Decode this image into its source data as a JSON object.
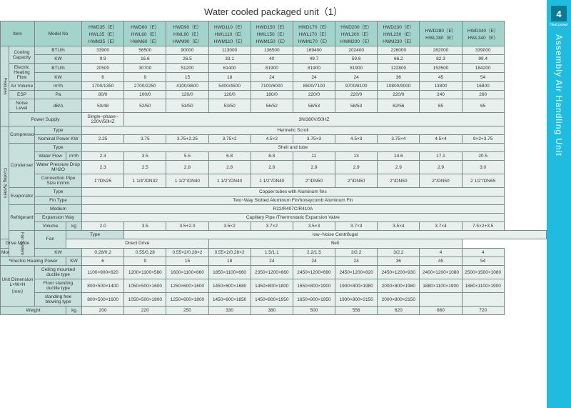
{
  "title": "Water cooled packaged unit（1）",
  "sidebar": {
    "num": "4",
    "small": "Heat power",
    "label": "Assembly Air Handling Unit"
  },
  "header": {
    "item": "Item",
    "model": "Model No",
    "models": [
      "HWD35（E）\nHWL35（E）\nHWM35（E）",
      "HWD60（E）\nHWL60（E）\nHWM60（E）",
      "HWD90（E）\nHWL90（E）\nHWM90（E）",
      "HWD110（E）\nHWL110（E）\nHWM110（E）",
      "HWD150（E）\nHWL150（E）\nHWM150（E）",
      "HWD170（E）\nHWL170（E）\nHWM170（E）",
      "HWD200（E）\nHWL200（E）\nHWM200（E）",
      "HWD230（E）\nHWL230（E）\nHWM230（E）",
      "HWD280（E）\nHWL280（E）",
      "HWD340（E）\nHWL340（E）"
    ]
  },
  "groups": {
    "features": "Features",
    "cooling": "Cooling System",
    "fan": "Fan System"
  },
  "rows": {
    "coolCap": "Cooling\nCapacity",
    "btu": "BTU/h",
    "kw": "KW",
    "coolBtu": [
      "33900",
      "56500",
      "90000",
      "113000",
      "136500",
      "169400",
      "202400",
      "226000",
      "282000",
      "339000"
    ],
    "coolKw": [
      "9.9",
      "16.6",
      "26.5",
      "33.1",
      "40",
      "49.7",
      "59.6",
      "66.2",
      "82.3",
      "99.4"
    ],
    "ehf": "Electric\nHeating\nFlow",
    "ehfBtu": [
      "20500",
      "30700",
      "51200",
      "61400",
      "81900",
      "81900",
      "81900",
      "122800",
      "153500",
      "184200"
    ],
    "ehfKw": [
      "6",
      "9",
      "15",
      "18",
      "24",
      "24",
      "24",
      "36",
      "45",
      "54"
    ],
    "airVol": "Air Volume",
    "m3h": "m³/h",
    "airVolV": [
      "1700/1350",
      "2700/2250",
      "4100/3600",
      "5400/4500",
      "7100/6000",
      "8500/7100",
      "9700/8100",
      "10800/9000",
      "13800",
      "16800"
    ],
    "esp": "ESP",
    "pa": "Pa",
    "espV": [
      "80/0",
      "100/0",
      "120/0",
      "120/0",
      "180/0",
      "220/0",
      "220/0",
      "220/0",
      "240",
      "260"
    ],
    "noise": "Noise Level",
    "dba": "dB/A",
    "noiseV": [
      "50/48",
      "52/50",
      "53/50",
      "53/50",
      "56/52",
      "58/53",
      "58/53",
      "62/56",
      "65",
      "65"
    ],
    "power": "Power Supply",
    "powerA": "Single~phase~\n220V/50HZ",
    "powerB": "3N/380V/50HZ",
    "comp": "Compressor",
    "type": "Type",
    "hermetic": "Hermetic Scroll",
    "nomP": "Nominal Power KW",
    "nomPV": [
      "2.25",
      "3.75",
      "3.75+2.25",
      "3.75×2",
      "4.5×2",
      "3.75×3",
      "4.5×3",
      "3.75×4",
      "4.5×4",
      "9×2+3.75"
    ],
    "cond": "Condenser",
    "shellTube": "Shell and tube",
    "wf": "Water Flow",
    "wfV": [
      "2.3",
      "3.5",
      "5.5",
      "6.8",
      "8.8",
      "11",
      "13",
      "14.6",
      "17.1",
      "20.5"
    ],
    "wpd": "Water Pressure Drop\nMH2O",
    "wpdV": [
      "2.3",
      "2.5",
      "2.8",
      "2.8",
      "2.8",
      "2.9",
      "2.9",
      "2.9",
      "2.9",
      "3.0"
    ],
    "cps": "Connection Pipe\nSize in/mm",
    "cpsV": [
      "1\"/DN25",
      "1 1/4\"/DN32",
      "1 1/2\"/DN40",
      "1 1/2\"/DN40",
      "1 1/2\"/DN40",
      "2\"/DN50",
      "2\"/DN50",
      "2\"/DN50",
      "2\"/DN50",
      "2 1/2\"/DN65"
    ],
    "evap": "Evaporator",
    "copper": "Copper tubes with Aluminum fins",
    "finType": "Fin Type",
    "fin": "Two~Way Slotted Aluminum Fin/honeycomb Aluminum Fin",
    "refrig": "Refrigerant",
    "medium": "Medium",
    "r22": "R22/R407C/R410A",
    "expWay": "Expansion Way",
    "exp": "Capillary Pipe /Thermostatic Expansion Valve",
    "vol": "Volume",
    "kg": "kg",
    "volV": [
      "2.0",
      "3.5",
      "3.5+2.0",
      "3.5×2",
      "3.7×2",
      "3.5×3",
      "3.7×3",
      "3.5×4",
      "3.7×4",
      "7.5×2+3.5"
    ],
    "fanL": "Fan",
    "lowN": "low~Noise Centrifugal",
    "drive": "Drive Mode",
    "direct": "Direct Drive",
    "belt": "Belt",
    "motor": "Motor",
    "motorV": [
      "0.28/0.2",
      "0.55/0.28",
      "0.55×2/0.28×2",
      "0.55×2/0.28×2",
      "1.5/1.1",
      "2.2/1.5",
      "3/2.2",
      "3/2.2",
      "4",
      "4"
    ],
    "ehp": "*Electric Heating Power",
    "ehpV": [
      "6",
      "9",
      "15",
      "18",
      "24",
      "24",
      "24",
      "36",
      "45",
      "54"
    ],
    "dim": "Unit Dimension\nL×W×H\n（mm）",
    "cmd": "Ceiling mounted\nductile type",
    "cmdV": [
      "1100×900×620",
      "1200×1100×580",
      "1600×1100×660",
      "1850×1100×660",
      "2350×1200×660",
      "2450×1200×690",
      "2450×1200×820",
      "2450×1200×930",
      "2400×1200×1080",
      "2500×1500×1080"
    ],
    "fsd": "Floor standing\nductile type",
    "fsdV": [
      "800×500×1400",
      "1050×500×1600",
      "1250×600×1600",
      "1450×600×1680",
      "1450×800×1800",
      "1650×800×1900",
      "1900×800×1980",
      "2000×800×1980",
      "1880×1100×1900",
      "1880×1100×1900"
    ],
    "sfb": "standing free\nblowing type",
    "sfbV": [
      "800×500×1600",
      "1050×500×1800",
      "1250×600×1800",
      "1450×600×1850",
      "1450×800×1950",
      "1650×800×1950",
      "1900×800×2150",
      "2000×800×2150",
      "",
      ""
    ],
    "weight": "Weight",
    "weightV": [
      "200",
      "220",
      "250",
      "330",
      "380",
      "500",
      "556",
      "620",
      "660",
      "720"
    ]
  }
}
